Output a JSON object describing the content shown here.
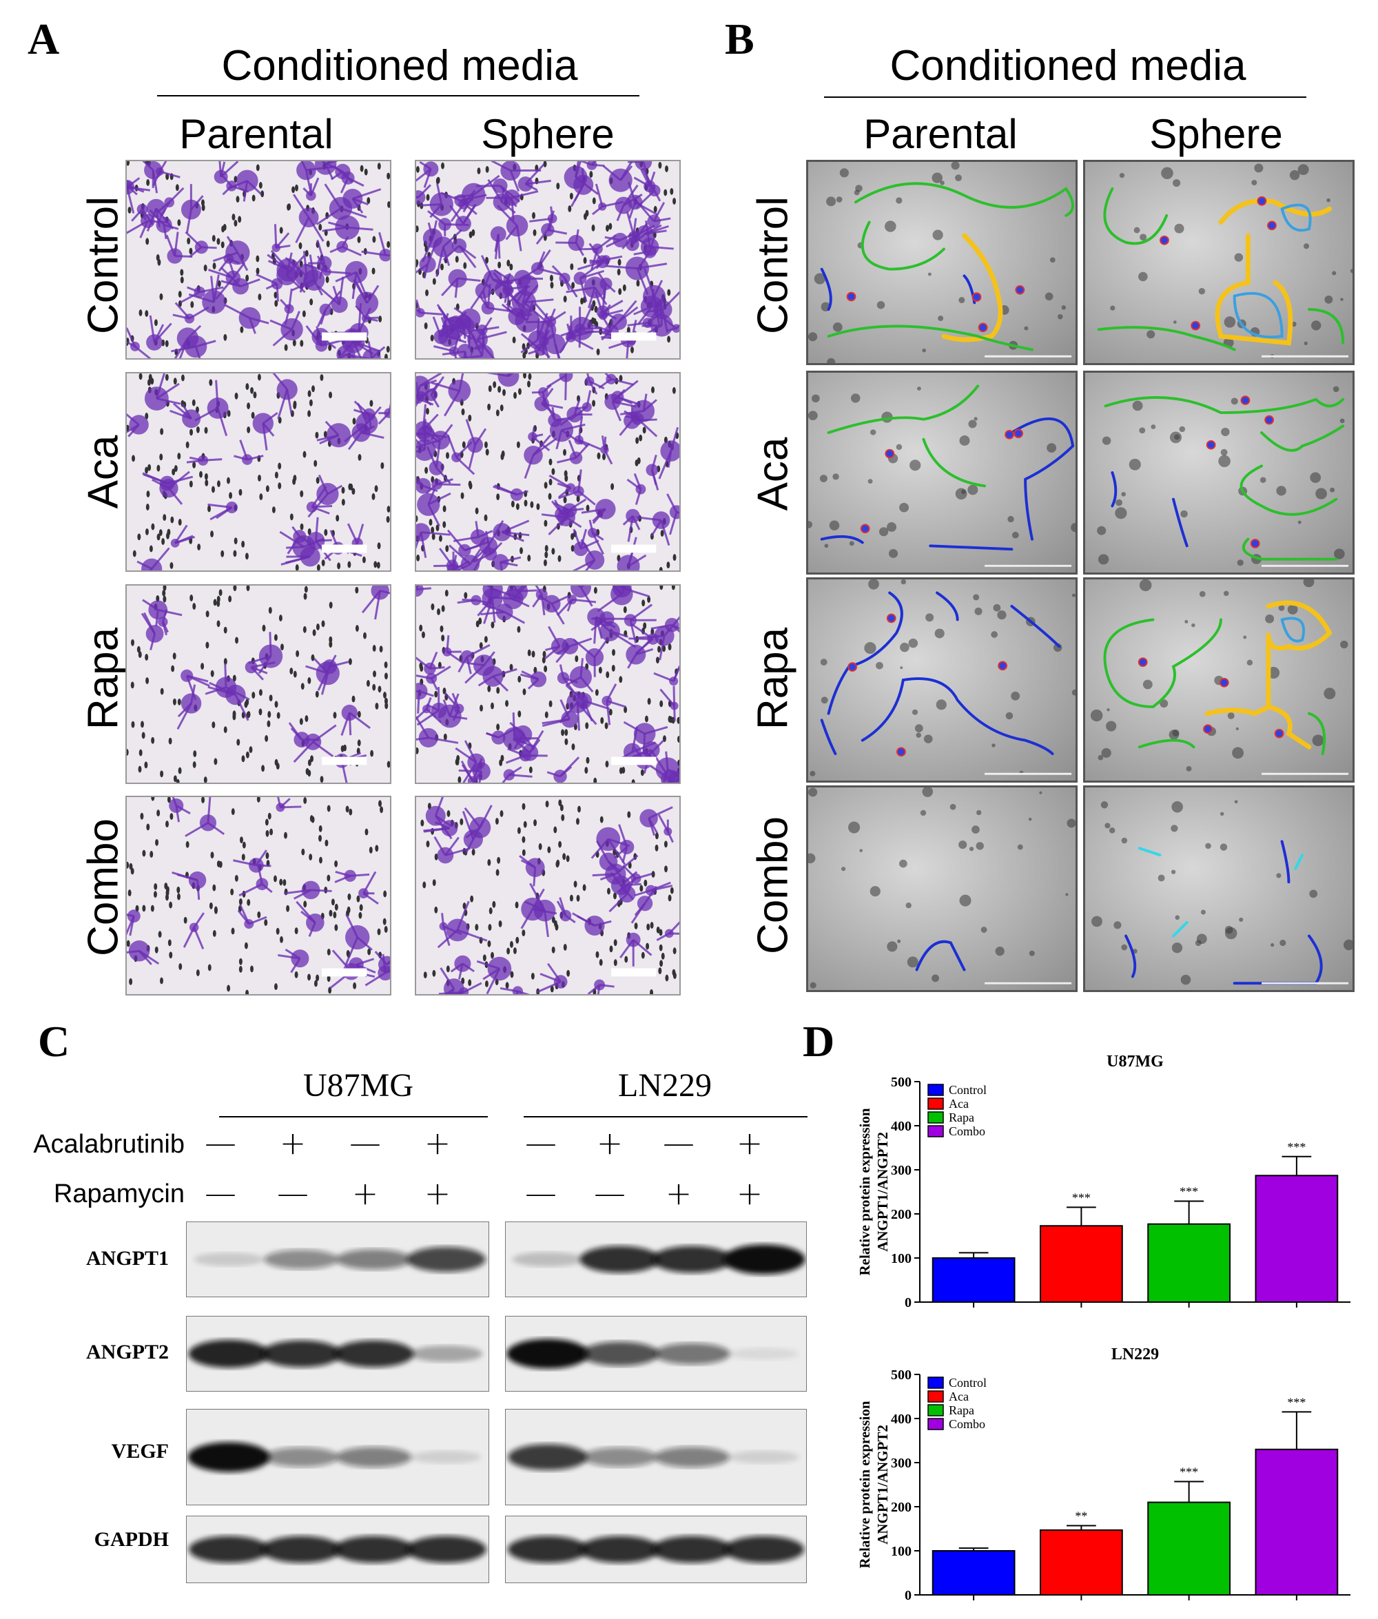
{
  "panels": {
    "A": {
      "letter": "A",
      "title": "Conditioned media",
      "columns": [
        "Parental",
        "Sphere"
      ],
      "rows": [
        "Control",
        "Aca",
        "Rapa",
        "Combo"
      ],
      "stain_color": "#6b2fb3"
    },
    "B": {
      "letter": "B",
      "title": "Conditioned media",
      "columns": [
        "Parental",
        "Sphere"
      ],
      "rows": [
        "Control",
        "Aca",
        "Rapa",
        "Combo"
      ],
      "overlay_colors": {
        "segments": "#2cbf2c",
        "branches": "#1c2fd4",
        "meshes": "#f5c21a",
        "loops": "#3aa0e0",
        "junctions": "#e03030",
        "isolated": "#32d8e8"
      }
    },
    "C": {
      "letter": "C",
      "cell_lines": [
        "U87MG",
        "LN229"
      ],
      "treatments": [
        {
          "label": "Acalabrutinib",
          "signs": [
            "—",
            "+",
            "—",
            "+"
          ]
        },
        {
          "label": "Rapamycin",
          "signs": [
            "—",
            "—",
            "+",
            "+"
          ]
        }
      ],
      "proteins": [
        "ANGPT1",
        "ANGPT2",
        "VEGF",
        "GAPDH"
      ]
    },
    "D": {
      "letter": "D"
    }
  },
  "chart_data": [
    {
      "type": "bar",
      "title": "U87MG",
      "ylabel": "Relative protein expression ANGPT1/ANGPT2",
      "ylabel_lines": [
        "Relative protein expression",
        "ANGPT1/ANGPT2"
      ],
      "categories": [
        "Control",
        "Aca",
        "Rapa",
        "Combo"
      ],
      "values": [
        100,
        173,
        177,
        287
      ],
      "errors": [
        12,
        42,
        52,
        43
      ],
      "significance": [
        "",
        "***",
        "***",
        "***"
      ],
      "colors": [
        "#0000ff",
        "#ff0000",
        "#00c000",
        "#a000e0"
      ],
      "legend": [
        "Control",
        "Aca",
        "Rapa",
        "Combo"
      ],
      "legend_position": "top-left",
      "ylim": [
        0,
        500
      ],
      "yticks": [
        "0",
        "100",
        "200",
        "300",
        "400",
        "500"
      ]
    },
    {
      "type": "bar",
      "title": "LN229",
      "ylabel": "Relative protein expression ANGPT1/ANGPT2",
      "ylabel_lines": [
        "Relative protein expression",
        "ANGPT1/ANGPT2"
      ],
      "categories": [
        "Control",
        "Aca",
        "Rapa",
        "Combo"
      ],
      "values": [
        100,
        147,
        210,
        330
      ],
      "errors": [
        6,
        10,
        47,
        85
      ],
      "significance": [
        "",
        "**",
        "***",
        "***"
      ],
      "colors": [
        "#0000ff",
        "#ff0000",
        "#00c000",
        "#a000e0"
      ],
      "legend": [
        "Control",
        "Aca",
        "Rapa",
        "Combo"
      ],
      "legend_position": "top-left",
      "ylim": [
        0,
        500
      ],
      "yticks": [
        "0",
        "100",
        "200",
        "300",
        "400",
        "500"
      ]
    }
  ]
}
